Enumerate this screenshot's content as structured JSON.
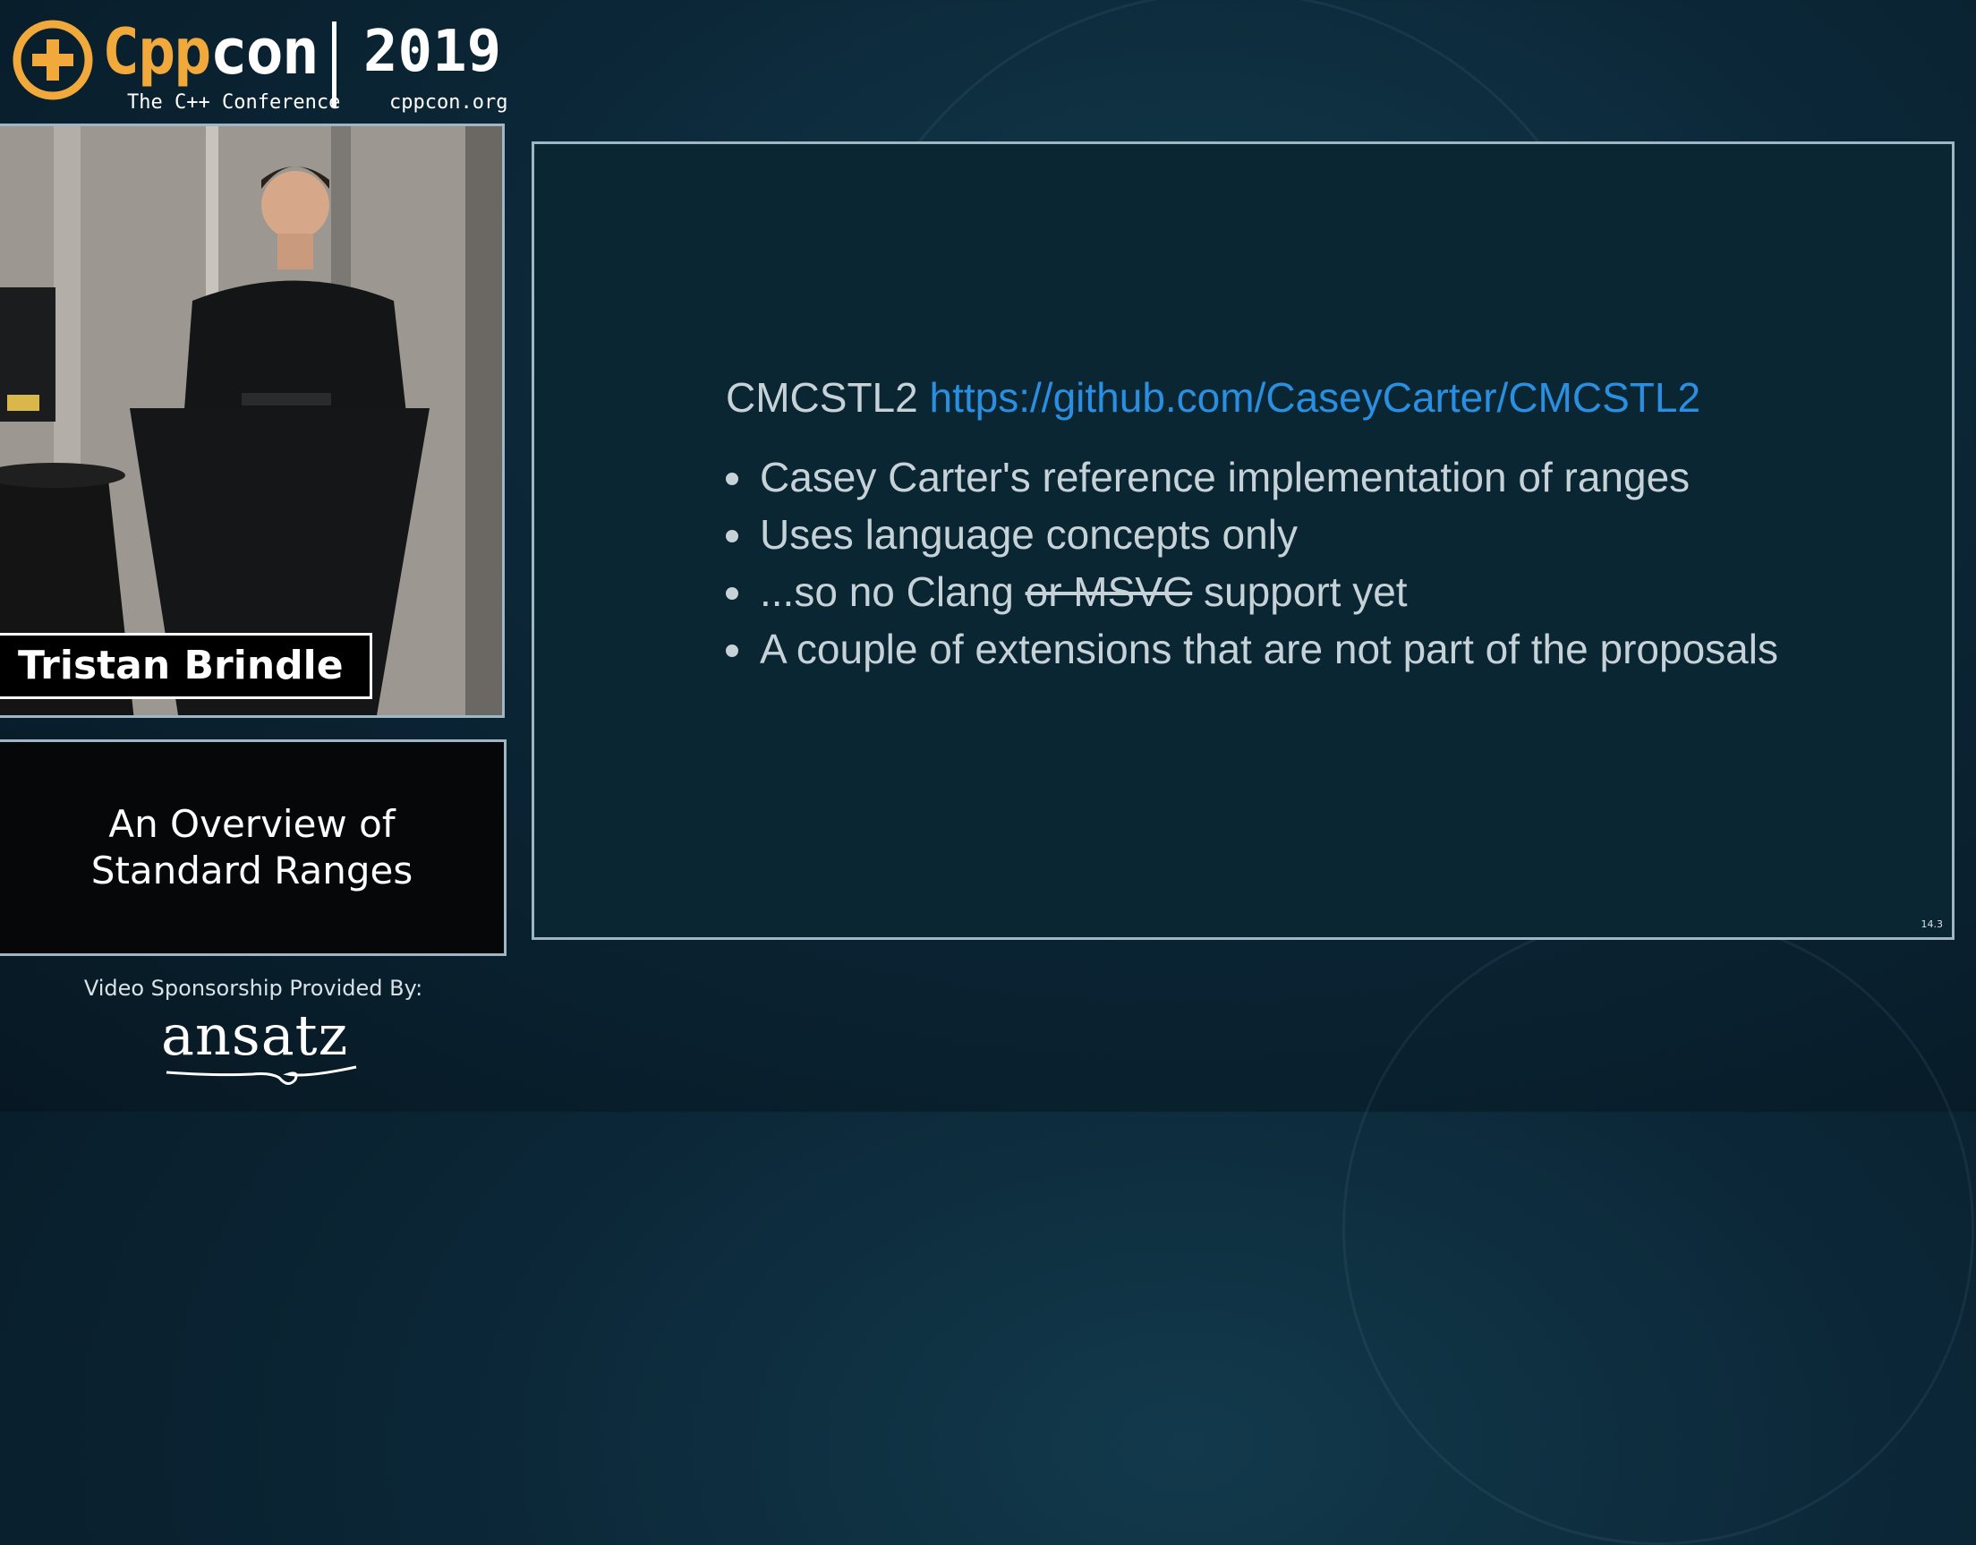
{
  "header": {
    "logo_cpp": "Cpp",
    "logo_con": "con",
    "tagline": "The C++ Conference",
    "year": "2019",
    "url": "cppcon.org"
  },
  "speaker": {
    "name": "Tristan Brindle"
  },
  "talk": {
    "title_line1": "An Overview of",
    "title_line2": "Standard Ranges"
  },
  "sponsor": {
    "label": "Video Sponsorship Provided By:",
    "name": "ansatz"
  },
  "slide": {
    "heading_prefix": "CMCSTL2",
    "heading_link": "https://github.com/CaseyCarter/CMCSTL2",
    "bullets": [
      {
        "text": "Casey Carter's reference implementation of ranges"
      },
      {
        "text": "Uses language concepts only"
      },
      {
        "before": "...so no Clang ",
        "struck": "or MSVC",
        "after": " support yet"
      },
      {
        "text": "A couple of extensions that are not part of the proposals"
      }
    ],
    "page_number": "14.3"
  },
  "colors": {
    "brand_orange": "#f2a93b",
    "link_blue": "#2a8fe0",
    "slide_bg": "#092632",
    "slide_text": "#c7d2d8"
  }
}
